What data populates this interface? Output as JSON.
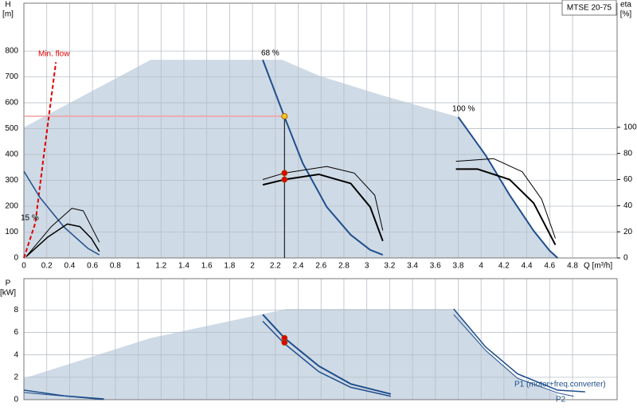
{
  "chart_data": [
    {
      "type": "line",
      "legend": "MTSE 20-75",
      "y_label": [
        "H",
        "[m]"
      ],
      "y2_label": [
        "eta",
        "[%]"
      ],
      "x_label": "Q [m³/h]",
      "xlim": [
        0,
        5.19
      ],
      "xticks": [
        0,
        0.2,
        0.4,
        0.6,
        0.8,
        1,
        1.2,
        1.4,
        1.6,
        1.8,
        2,
        2.2,
        2.4,
        2.6,
        2.8,
        3,
        3.2,
        3.4,
        3.6,
        3.8,
        4,
        4.2,
        4.4,
        4.6,
        4.8
      ],
      "xtick_labels": true,
      "ylim": [
        0,
        985
      ],
      "yticks": [
        0,
        100,
        200,
        300,
        400,
        500,
        600,
        700,
        800
      ],
      "y2lim": [
        0,
        195
      ],
      "y2ticks": [
        0,
        20,
        40,
        60,
        80,
        100
      ],
      "grid": true,
      "annotations": [
        {
          "text": "Min. flow",
          "color": "#e00000"
        },
        {
          "text": "68 %",
          "color": "#000000"
        },
        {
          "text": "100 %",
          "color": "#000000"
        },
        {
          "text": "15 %",
          "color": "#000000"
        }
      ],
      "series": [
        {
          "kind": "area",
          "color": "#c5d3e0",
          "x": [
            0,
            1.11,
            2.26,
            2.58,
            3.14,
            3.8,
            4.04,
            4.25,
            4.46,
            4.6,
            4.67,
            0
          ],
          "values": [
            505,
            766,
            766,
            705,
            628,
            545,
            397,
            243,
            105,
            28,
            0,
            0
          ]
        },
        {
          "kind": "line",
          "color": "#e00000",
          "width": 2,
          "dash": true,
          "x": [
            0,
            0.1,
            0.17,
            0.28
          ],
          "values": [
            0,
            135,
            382,
            757
          ]
        },
        {
          "kind": "line",
          "color": "#f4a0a0",
          "width": 1.5,
          "x": [
            0,
            2.28
          ],
          "values": [
            548,
            548
          ]
        },
        {
          "kind": "line",
          "color": "#000000",
          "width": 1,
          "x": [
            2.28,
            2.28
          ],
          "values": [
            548,
            0
          ]
        },
        {
          "kind": "line",
          "color": "#1f4e8c",
          "width": 2,
          "x": [
            3.8,
            4.04,
            4.25,
            4.46,
            4.6,
            4.67
          ],
          "values": [
            545,
            397,
            243,
            105,
            28,
            0
          ]
        },
        {
          "kind": "line",
          "color": "#1f4e8c",
          "width": 2,
          "x": [
            2.09,
            2.28,
            2.44,
            2.65,
            2.86,
            3.03,
            3.14
          ],
          "values": [
            766,
            545,
            366,
            197,
            89,
            31,
            12
          ]
        },
        {
          "kind": "line",
          "color": "#1f4e8c",
          "width": 1.5,
          "x": [
            0,
            0.14,
            0.35,
            0.56,
            0.66
          ],
          "values": [
            335,
            234,
            120,
            37,
            12
          ]
        },
        {
          "kind": "line",
          "axis": "y2",
          "color": "#000000",
          "width": 2,
          "x": [
            2.09,
            2.28,
            2.58,
            2.86,
            3.03,
            3.14
          ],
          "values": [
            56,
            60,
            64,
            57,
            39,
            13
          ]
        },
        {
          "kind": "line",
          "axis": "y2",
          "color": "#000000",
          "width": 1,
          "x": [
            2.09,
            2.28,
            2.65,
            2.89,
            3.07,
            3.14
          ],
          "values": [
            60,
            65,
            70,
            65,
            48,
            21
          ]
        },
        {
          "kind": "line",
          "axis": "y2",
          "color": "#000000",
          "width": 2,
          "x": [
            3.78,
            3.97,
            4.25,
            4.46,
            4.65
          ],
          "values": [
            68,
            68,
            60,
            42,
            10
          ]
        },
        {
          "kind": "line",
          "axis": "y2",
          "color": "#000000",
          "width": 1,
          "x": [
            3.78,
            4.11,
            4.36,
            4.53,
            4.65
          ],
          "values": [
            74,
            76,
            66,
            45,
            15
          ]
        },
        {
          "kind": "line",
          "axis": "y2",
          "color": "#000000",
          "width": 1.5,
          "x": [
            0.02,
            0.21,
            0.38,
            0.49,
            0.59,
            0.66
          ],
          "values": [
            1,
            16,
            26,
            24,
            15,
            5
          ]
        },
        {
          "kind": "line",
          "axis": "y2",
          "color": "#000000",
          "width": 1,
          "x": [
            0.02,
            0.24,
            0.42,
            0.52,
            0.66
          ],
          "values": [
            1,
            24,
            38,
            36,
            12
          ]
        },
        {
          "kind": "points",
          "axis": "y2",
          "color": "#e00000",
          "x": [
            2.28,
            2.28
          ],
          "values": [
            60,
            65
          ]
        },
        {
          "kind": "points",
          "color": "#f5c518",
          "x": [
            2.28
          ],
          "values": [
            548
          ]
        }
      ]
    },
    {
      "type": "line",
      "y_label": [
        "P",
        "[kW]"
      ],
      "xlim": [
        0,
        5.19
      ],
      "xticks": [
        0,
        0.2,
        0.4,
        0.6,
        0.8,
        1,
        1.2,
        1.4,
        1.6,
        1.8,
        2,
        2.2,
        2.4,
        2.6,
        2.8,
        3,
        3.2,
        3.4,
        3.6,
        3.8,
        4,
        4.2,
        4.4,
        4.6,
        4.8
      ],
      "xtick_labels": false,
      "ylim": [
        0,
        10.8
      ],
      "yticks": [
        0,
        2,
        4,
        6,
        8
      ],
      "grid": true,
      "annotations": [
        {
          "text": "P1 (motor+freq.converter)",
          "color": "#1f4e8c"
        },
        {
          "text": "P2",
          "color": "#1f4e8c"
        }
      ],
      "series": [
        {
          "kind": "area",
          "color": "#c5d3e0",
          "x": [
            0,
            1.11,
            2.3,
            3.76,
            4.04,
            4.32,
            4.67,
            4.67,
            0
          ],
          "values": [
            1.9,
            5.5,
            8.1,
            8.1,
            4.4,
            1.9,
            0.5,
            0,
            0
          ]
        },
        {
          "kind": "line",
          "color": "#1f4e8c",
          "width": 2,
          "x": [
            2.09,
            2.28,
            2.58,
            2.86,
            3.21
          ],
          "values": [
            7.6,
            5.5,
            3.0,
            1.4,
            0.5
          ]
        },
        {
          "kind": "line",
          "color": "#1f4e8c",
          "width": 1.5,
          "x": [
            2.09,
            2.28,
            2.58,
            2.86,
            3.21
          ],
          "values": [
            7.0,
            5.0,
            2.5,
            1.1,
            0.3
          ]
        },
        {
          "kind": "line",
          "color": "#1f4e8c",
          "width": 1.5,
          "x": [
            3.76,
            4.04,
            4.32,
            4.67,
            4.91
          ],
          "values": [
            8.1,
            4.7,
            2.3,
            0.85,
            0.7
          ]
        },
        {
          "kind": "line",
          "color": "#1f4e8c",
          "width": 1,
          "x": [
            3.76,
            4.04,
            4.32,
            4.67,
            4.81
          ],
          "values": [
            7.6,
            4.4,
            1.9,
            0.6,
            0.3
          ]
        },
        {
          "kind": "line",
          "color": "#1f4e8c",
          "width": 1.5,
          "x": [
            0,
            0.35,
            0.7
          ],
          "values": [
            0.85,
            0.35,
            0.07
          ]
        },
        {
          "kind": "line",
          "color": "#1f4e8c",
          "width": 1,
          "x": [
            0,
            0.7
          ],
          "values": [
            0.64,
            0
          ]
        },
        {
          "kind": "points",
          "color": "#e00000",
          "x": [
            2.28,
            2.28
          ],
          "values": [
            5.5,
            5.1
          ]
        }
      ]
    }
  ]
}
